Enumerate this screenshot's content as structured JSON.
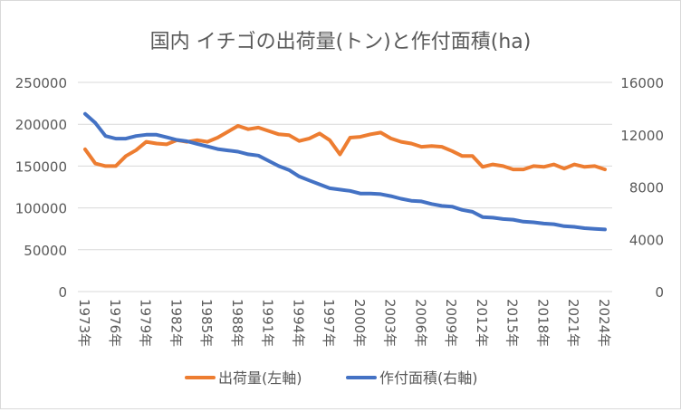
{
  "chart_data": {
    "type": "line",
    "title": "国内 イチゴの出荷量(トン)と作付面積(ha)",
    "x": [
      1973,
      1974,
      1975,
      1976,
      1977,
      1978,
      1979,
      1980,
      1981,
      1982,
      1983,
      1984,
      1985,
      1986,
      1987,
      1988,
      1989,
      1990,
      1991,
      1992,
      1993,
      1994,
      1995,
      1996,
      1997,
      1998,
      1999,
      2000,
      2001,
      2002,
      2003,
      2004,
      2005,
      2006,
      2007,
      2008,
      2009,
      2010,
      2011,
      2012,
      2013,
      2014,
      2015,
      2016,
      2017,
      2018,
      2019,
      2020,
      2021,
      2022,
      2023,
      2024
    ],
    "x_tick_labels": [
      "1973年",
      "1976年",
      "1979年",
      "1982年",
      "1985年",
      "1988年",
      "1991年",
      "1994年",
      "1997年",
      "2000年",
      "2003年",
      "2006年",
      "2009年",
      "2012年",
      "2015年",
      "2018年",
      "2021年",
      "2024年"
    ],
    "y_left": {
      "ylim": [
        0,
        250000
      ],
      "ticks": [
        "0",
        "50000",
        "100000",
        "150000",
        "200000",
        "250000"
      ]
    },
    "y_right": {
      "ylim": [
        0,
        16000
      ],
      "ticks": [
        "0",
        "4000",
        "8000",
        "12000",
        "16000"
      ]
    },
    "grid": true,
    "legend": "bottom",
    "series": [
      {
        "name": "出荷量(左軸)",
        "axis": "left",
        "color": "#ED7D31",
        "values": [
          170000,
          153000,
          150000,
          150000,
          162000,
          169000,
          179000,
          177000,
          176000,
          181000,
          179000,
          181000,
          179000,
          184000,
          191000,
          198000,
          194000,
          196000,
          192000,
          188000,
          187000,
          180000,
          183000,
          189000,
          181000,
          164000,
          184000,
          185000,
          188000,
          190000,
          183000,
          179000,
          177000,
          173000,
          174000,
          173000,
          168000,
          162000,
          162000,
          149000,
          152000,
          150000,
          146000,
          146000,
          150000,
          149000,
          152000,
          147000,
          152000,
          149000,
          150000,
          146000
        ]
      },
      {
        "name": "作付面積(右軸)",
        "axis": "right",
        "color": "#4472C4",
        "values": [
          13600,
          12900,
          11900,
          11700,
          11700,
          11900,
          12000,
          12000,
          11800,
          11600,
          11500,
          11300,
          11100,
          10900,
          10800,
          10700,
          10500,
          10400,
          10000,
          9600,
          9300,
          8800,
          8500,
          8200,
          7900,
          7800,
          7700,
          7500,
          7500,
          7450,
          7300,
          7100,
          6950,
          6900,
          6700,
          6550,
          6500,
          6250,
          6100,
          5700,
          5650,
          5550,
          5500,
          5350,
          5300,
          5200,
          5150,
          5000,
          4950,
          4850,
          4800,
          4750
        ]
      }
    ]
  }
}
